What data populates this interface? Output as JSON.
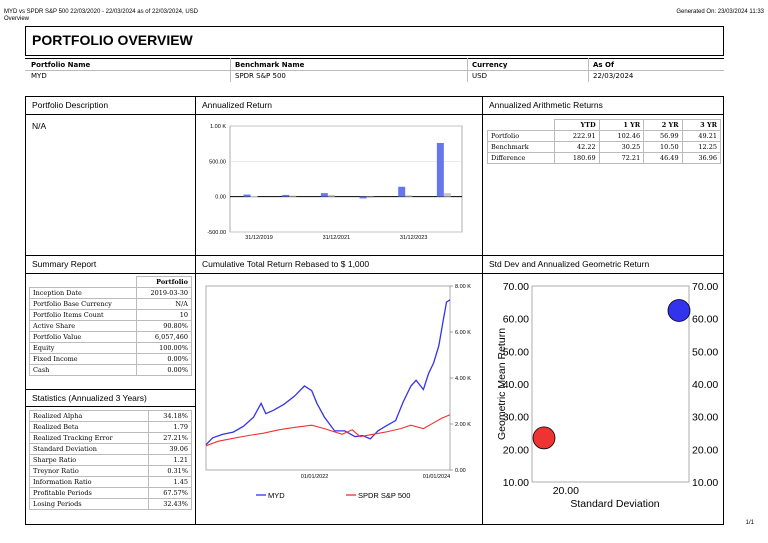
{
  "top": {
    "title": "MYD vs SPDR S&P 500 22/03/2020 - 22/03/2024 as of 22/03/2024, USD",
    "subtitle": "Overview",
    "generated": "Generated On: 23/03/2024 11:33"
  },
  "header": {
    "title": "PORTFOLIO OVERVIEW",
    "cols": [
      {
        "label": "Portfolio Name",
        "value": "MYD"
      },
      {
        "label": "Benchmark Name",
        "value": "SPDR S&P 500"
      },
      {
        "label": "Currency",
        "value": "USD"
      },
      {
        "label": "As Of",
        "value": "22/03/2024"
      }
    ]
  },
  "description": {
    "title": "Portfolio Description",
    "text": "N/A"
  },
  "annualized_return": {
    "title": "Annualized Return"
  },
  "arith": {
    "title": "Annualized Arithmetic Returns",
    "headers": [
      "YTD",
      "1 YR",
      "2 YR",
      "3 YR"
    ],
    "rows": [
      {
        "label": "Portfolio",
        "values": [
          "222.91",
          "102.46",
          "56.99",
          "49.21"
        ]
      },
      {
        "label": "Benchmark",
        "values": [
          "42.22",
          "30.25",
          "10.50",
          "12.25"
        ]
      },
      {
        "label": "Difference",
        "values": [
          "180.69",
          "72.21",
          "46.49",
          "36.96"
        ]
      }
    ]
  },
  "summary": {
    "title": "Summary Report",
    "col_header": "Portfolio",
    "rows": [
      {
        "label": "Inception Date",
        "value": "2019-03-30"
      },
      {
        "label": "Portfolio Base Currency",
        "value": "N/A"
      },
      {
        "label": "Portfolio Items Count",
        "value": "10"
      },
      {
        "label": "Active Share",
        "value": "90.80%"
      },
      {
        "label": "Portfolio Value",
        "value": "6,057,460"
      },
      {
        "label": "Equity",
        "value": "100.00%"
      },
      {
        "label": "Fixed Income",
        "value": "0.00%"
      },
      {
        "label": "Cash",
        "value": "0.00%"
      }
    ]
  },
  "stats": {
    "title": "Statistics (Annualized 3 Years)",
    "rows": [
      {
        "label": "Realized Alpha",
        "value": "34.18%"
      },
      {
        "label": "Realized Beta",
        "value": "1.79"
      },
      {
        "label": "Realized Tracking Error",
        "value": "27.21%"
      },
      {
        "label": "Standard Deviation",
        "value": "39.06"
      },
      {
        "label": "Sharpe Ratio",
        "value": "1.21"
      },
      {
        "label": "Treynor Ratio",
        "value": "0.31%"
      },
      {
        "label": "Information Ratio",
        "value": "1.45"
      },
      {
        "label": "Profitable Periods",
        "value": "67.57%"
      },
      {
        "label": "Losing Periods",
        "value": "32.43%"
      }
    ]
  },
  "cumulative": {
    "title": "Cumulative Total Return Rebased to $ 1,000"
  },
  "stddev": {
    "title": "Std Dev and Annualized Geometric Return"
  },
  "footer": {
    "page": "1/1"
  },
  "colors": {
    "portfolio": "#3333ee",
    "benchmark": "#ee3333",
    "blue_bar": "#6677ee",
    "grey_bar": "#c8c8c8"
  },
  "chart_data": [
    {
      "type": "bar",
      "x": [
        "2019",
        "2020",
        "2021",
        "2022",
        "2023",
        "2024"
      ],
      "xtick_labels": [
        "31/12/2019",
        "31/12/2021",
        "31/12/2023"
      ],
      "ytick_labels": [
        "1.00 K",
        "500.00",
        "0.00",
        "-500.00"
      ],
      "ylim": [
        -500,
        1000
      ],
      "series": [
        {
          "values": [
            30,
            25,
            50,
            -25,
            140,
            760
          ]
        },
        {
          "values": [
            10,
            15,
            25,
            -20,
            20,
            50
          ]
        }
      ]
    },
    {
      "type": "line",
      "x_range": [
        "2020-03-22",
        "2024-03-22"
      ],
      "xtick_labels": [
        "01/01/2022",
        "01/01/2024"
      ],
      "ytick_labels": [
        "8.00 K",
        "6.00 K",
        "4.00 K",
        "2.00 K",
        "0.00"
      ],
      "ylim": [
        0,
        8000
      ],
      "series": [
        {
          "name": "MYD",
          "points": [
            [
              "2020-03-22",
              1100
            ],
            [
              "2020-05-01",
              1400
            ],
            [
              "2020-07-01",
              1550
            ],
            [
              "2020-09-01",
              1650
            ],
            [
              "2020-11-01",
              1900
            ],
            [
              "2021-01-01",
              2300
            ],
            [
              "2021-02-15",
              2900
            ],
            [
              "2021-03-15",
              2450
            ],
            [
              "2021-05-01",
              2600
            ],
            [
              "2021-07-01",
              2850
            ],
            [
              "2021-09-01",
              3200
            ],
            [
              "2021-11-01",
              3650
            ],
            [
              "2021-12-15",
              3450
            ],
            [
              "2022-01-15",
              2900
            ],
            [
              "2022-03-01",
              2300
            ],
            [
              "2022-05-01",
              1700
            ],
            [
              "2022-07-01",
              1700
            ],
            [
              "2022-09-01",
              1450
            ],
            [
              "2022-10-15",
              1500
            ],
            [
              "2022-12-01",
              1350
            ],
            [
              "2023-01-15",
              1700
            ],
            [
              "2023-03-01",
              1900
            ],
            [
              "2023-05-01",
              2150
            ],
            [
              "2023-06-15",
              2950
            ],
            [
              "2023-08-01",
              3650
            ],
            [
              "2023-09-01",
              3900
            ],
            [
              "2023-10-15",
              3500
            ],
            [
              "2023-11-15",
              4200
            ],
            [
              "2023-12-15",
              4650
            ],
            [
              "2024-01-15",
              5400
            ],
            [
              "2024-02-10",
              6500
            ],
            [
              "2024-03-01",
              7300
            ],
            [
              "2024-03-22",
              7400
            ]
          ]
        },
        {
          "name": "SPDR S&P 500",
          "points": [
            [
              "2020-03-22",
              1050
            ],
            [
              "2020-06-01",
              1250
            ],
            [
              "2020-09-01",
              1380
            ],
            [
              "2020-12-01",
              1500
            ],
            [
              "2021-03-01",
              1600
            ],
            [
              "2021-06-01",
              1750
            ],
            [
              "2021-09-01",
              1850
            ],
            [
              "2021-12-15",
              1950
            ],
            [
              "2022-03-01",
              1800
            ],
            [
              "2022-06-15",
              1550
            ],
            [
              "2022-08-15",
              1750
            ],
            [
              "2022-10-01",
              1450
            ],
            [
              "2022-12-15",
              1550
            ],
            [
              "2023-03-01",
              1650
            ],
            [
              "2023-06-01",
              1800
            ],
            [
              "2023-08-01",
              1950
            ],
            [
              "2023-10-15",
              1800
            ],
            [
              "2023-12-15",
              2050
            ],
            [
              "2024-02-01",
              2250
            ],
            [
              "2024-03-22",
              2400
            ]
          ]
        }
      ],
      "legend": [
        "MYD",
        "SPDR S&P 500"
      ]
    },
    {
      "type": "scatter",
      "xlabel": "Standard Deviation",
      "ylabel": "Geometric Mean Return",
      "xtick_labels": [
        "20.00"
      ],
      "ytick_labels": [
        "70.00",
        "60.00",
        "50.00",
        "40.00",
        "30.00",
        "20.00",
        "10.00"
      ],
      "ylim": [
        10,
        70
      ],
      "points": [
        {
          "x": 18.5,
          "y": 23.5,
          "color": "#ee3333"
        },
        {
          "x": 39.06,
          "y": 62.5,
          "color": "#3333ee"
        }
      ]
    }
  ]
}
